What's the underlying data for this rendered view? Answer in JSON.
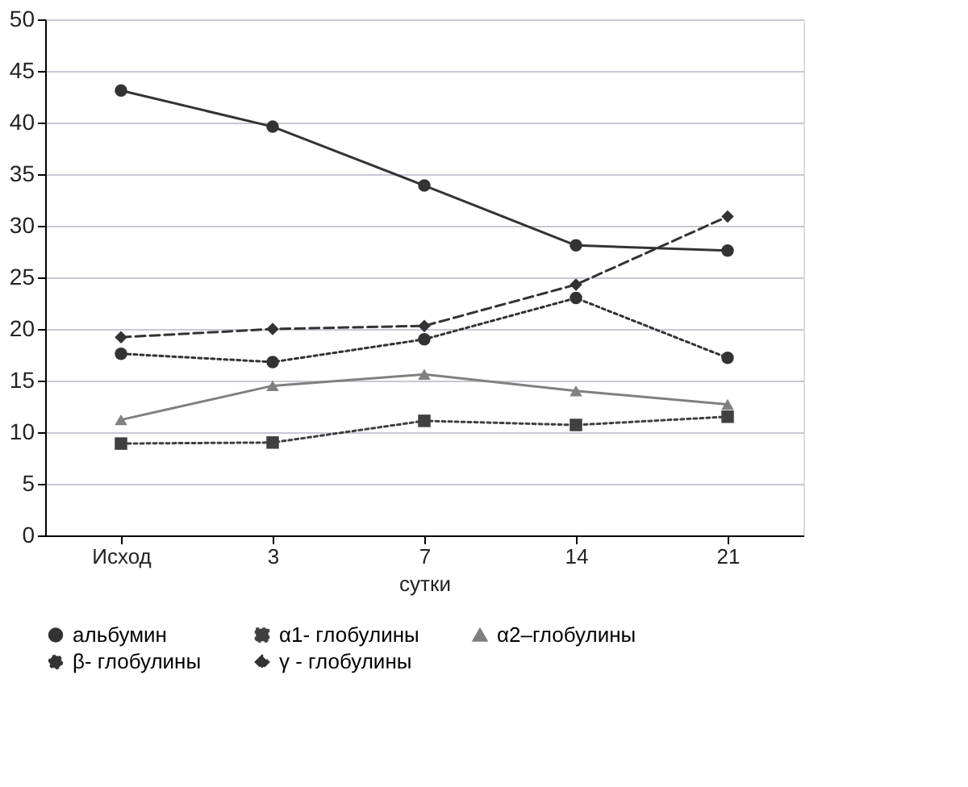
{
  "chart_data": {
    "type": "line",
    "xlabel": "сутки",
    "categories": [
      "Исход",
      "3",
      "7",
      "14",
      "21"
    ],
    "series": [
      {
        "name": "альбумин",
        "color": "#333333",
        "marker": "circle",
        "line_style": "solid",
        "values": [
          43.1,
          39.6,
          33.9,
          28.1,
          27.6
        ]
      },
      {
        "name": "α1- глобулины",
        "color": "#404040",
        "marker": "square",
        "line_style": "dotted",
        "values": [
          8.9,
          9.0,
          11.1,
          10.7,
          11.5
        ]
      },
      {
        "name": "α2–глобулины",
        "color": "#808080",
        "marker": "triangle",
        "line_style": "solid",
        "values": [
          11.2,
          14.5,
          15.6,
          14.0,
          12.7
        ]
      },
      {
        "name": "β- глобулины",
        "color": "#333333",
        "marker": "circle",
        "line_style": "dotted",
        "values": [
          17.6,
          16.8,
          19.0,
          23.0,
          17.2
        ]
      },
      {
        "name": "γ - глобулины",
        "color": "#333333",
        "marker": "diamond",
        "line_style": "dashed",
        "values": [
          19.2,
          20.0,
          20.3,
          24.3,
          30.9
        ]
      }
    ],
    "ylim": [
      0,
      50
    ],
    "yticks": [
      0,
      5,
      10,
      15,
      20,
      25,
      30,
      35,
      40,
      45,
      50
    ],
    "grid": "y",
    "legend": "bottom"
  }
}
